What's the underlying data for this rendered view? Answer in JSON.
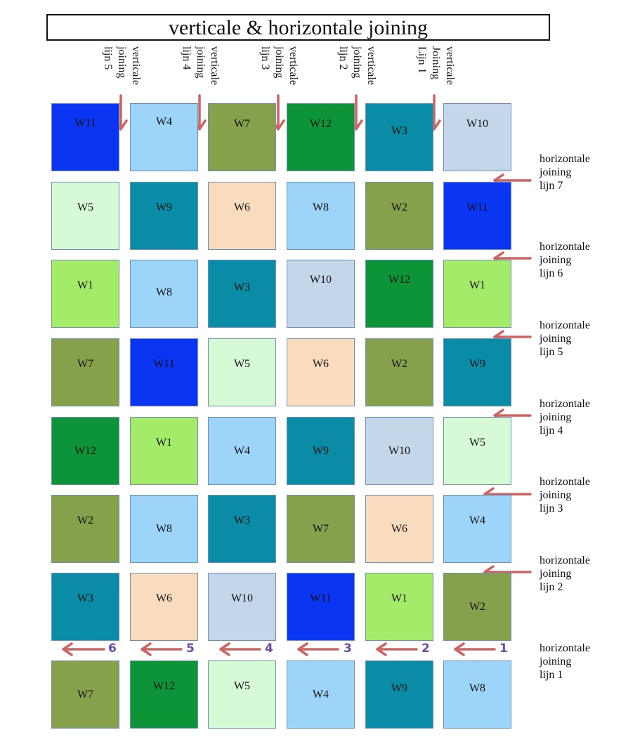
{
  "title": "verticale & horizontale joining",
  "vertical_labels": [
    {
      "lines": [
        "vertical",
        "joining",
        "lijn 5"
      ]
    },
    {
      "lines": [
        "verticale",
        "joining",
        "lijn 4"
      ]
    },
    {
      "lines": [
        "verticale",
        "joining",
        "lijn 3"
      ]
    },
    {
      "lines": [
        "verticale",
        "joining",
        "lijn 2"
      ]
    },
    {
      "lines": [
        "verticale",
        "Joining",
        "Lijn 1"
      ]
    }
  ],
  "horizontal_labels": [
    {
      "lines": [
        "horizontale",
        "joining",
        "lijn 7"
      ]
    },
    {
      "lines": [
        "horizontale",
        "joining",
        "lijn 6"
      ]
    },
    {
      "lines": [
        "horizontale",
        "joining",
        "lijn 5"
      ]
    },
    {
      "lines": [
        "horizontale",
        "joining",
        "lijn 4"
      ]
    },
    {
      "lines": [
        "horizontale",
        "joining",
        "lijn 3"
      ]
    },
    {
      "lines": [
        "horizontale",
        "joining",
        "lijn 2"
      ]
    },
    {
      "lines": [
        "horizontale",
        "joining",
        "lijn 1"
      ]
    }
  ],
  "bottom_arrow_numbers": [
    "6",
    "5",
    "4",
    "3",
    "2",
    "1"
  ],
  "colors": {
    "W1": "#a4eb6a",
    "W2": "#87a04c",
    "W3": "#0a8ca6",
    "W4": "#9dd4fa",
    "W5": "#d5fad5",
    "W6": "#f9dcbd",
    "W7": "#87a04c",
    "W8": "#9dd4fa",
    "W9": "#0a8ca6",
    "W10": "#c3d6ea",
    "W11": "#0a35f2",
    "W12": "#0e9438",
    "arrow": "#cc6464",
    "number": "#6a4ba8"
  },
  "grid": [
    [
      "W11",
      "W4",
      "W7",
      "W12",
      "W3",
      "W10"
    ],
    [
      "W5",
      "W9",
      "W6",
      "W8",
      "W2",
      "W11"
    ],
    [
      "W1",
      "W8",
      "W3",
      "W10",
      "W12",
      "W1"
    ],
    [
      "W7",
      "W11",
      "W5",
      "W6",
      "W2",
      "W9"
    ],
    [
      "W12",
      "W1",
      "W4",
      "W9",
      "W10",
      "W5"
    ],
    [
      "W2",
      "W8",
      "W3",
      "W7",
      "W6",
      "W4"
    ],
    [
      "W3",
      "W6",
      "W10",
      "W11",
      "W1",
      "W2"
    ],
    [
      "W7",
      "W12",
      "W5",
      "W4",
      "W9",
      "W8"
    ]
  ]
}
